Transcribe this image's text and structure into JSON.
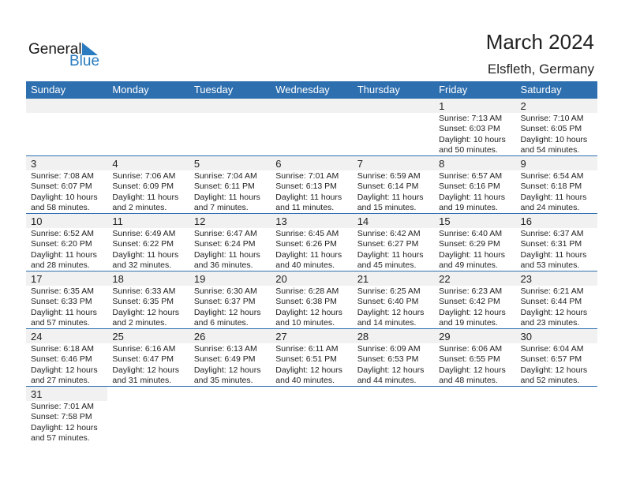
{
  "logo": {
    "word1": "General",
    "word2": "Blue",
    "color": "#2a7bc0"
  },
  "header": {
    "title": "March 2024",
    "location": "Elsfleth, Germany"
  },
  "colors": {
    "header_bg": "#2e6faf",
    "day_band": "#f1f1f1"
  },
  "weekdays": [
    "Sunday",
    "Monday",
    "Tuesday",
    "Wednesday",
    "Thursday",
    "Friday",
    "Saturday"
  ],
  "weeks": [
    [
      null,
      null,
      null,
      null,
      null,
      {
        "day": "1",
        "sunrise": "Sunrise: 7:13 AM",
        "sunset": "Sunset: 6:03 PM",
        "daylight1": "Daylight: 10 hours",
        "daylight2": "and 50 minutes."
      },
      {
        "day": "2",
        "sunrise": "Sunrise: 7:10 AM",
        "sunset": "Sunset: 6:05 PM",
        "daylight1": "Daylight: 10 hours",
        "daylight2": "and 54 minutes."
      }
    ],
    [
      {
        "day": "3",
        "sunrise": "Sunrise: 7:08 AM",
        "sunset": "Sunset: 6:07 PM",
        "daylight1": "Daylight: 10 hours",
        "daylight2": "and 58 minutes."
      },
      {
        "day": "4",
        "sunrise": "Sunrise: 7:06 AM",
        "sunset": "Sunset: 6:09 PM",
        "daylight1": "Daylight: 11 hours",
        "daylight2": "and 2 minutes."
      },
      {
        "day": "5",
        "sunrise": "Sunrise: 7:04 AM",
        "sunset": "Sunset: 6:11 PM",
        "daylight1": "Daylight: 11 hours",
        "daylight2": "and 7 minutes."
      },
      {
        "day": "6",
        "sunrise": "Sunrise: 7:01 AM",
        "sunset": "Sunset: 6:13 PM",
        "daylight1": "Daylight: 11 hours",
        "daylight2": "and 11 minutes."
      },
      {
        "day": "7",
        "sunrise": "Sunrise: 6:59 AM",
        "sunset": "Sunset: 6:14 PM",
        "daylight1": "Daylight: 11 hours",
        "daylight2": "and 15 minutes."
      },
      {
        "day": "8",
        "sunrise": "Sunrise: 6:57 AM",
        "sunset": "Sunset: 6:16 PM",
        "daylight1": "Daylight: 11 hours",
        "daylight2": "and 19 minutes."
      },
      {
        "day": "9",
        "sunrise": "Sunrise: 6:54 AM",
        "sunset": "Sunset: 6:18 PM",
        "daylight1": "Daylight: 11 hours",
        "daylight2": "and 24 minutes."
      }
    ],
    [
      {
        "day": "10",
        "sunrise": "Sunrise: 6:52 AM",
        "sunset": "Sunset: 6:20 PM",
        "daylight1": "Daylight: 11 hours",
        "daylight2": "and 28 minutes."
      },
      {
        "day": "11",
        "sunrise": "Sunrise: 6:49 AM",
        "sunset": "Sunset: 6:22 PM",
        "daylight1": "Daylight: 11 hours",
        "daylight2": "and 32 minutes."
      },
      {
        "day": "12",
        "sunrise": "Sunrise: 6:47 AM",
        "sunset": "Sunset: 6:24 PM",
        "daylight1": "Daylight: 11 hours",
        "daylight2": "and 36 minutes."
      },
      {
        "day": "13",
        "sunrise": "Sunrise: 6:45 AM",
        "sunset": "Sunset: 6:26 PM",
        "daylight1": "Daylight: 11 hours",
        "daylight2": "and 40 minutes."
      },
      {
        "day": "14",
        "sunrise": "Sunrise: 6:42 AM",
        "sunset": "Sunset: 6:27 PM",
        "daylight1": "Daylight: 11 hours",
        "daylight2": "and 45 minutes."
      },
      {
        "day": "15",
        "sunrise": "Sunrise: 6:40 AM",
        "sunset": "Sunset: 6:29 PM",
        "daylight1": "Daylight: 11 hours",
        "daylight2": "and 49 minutes."
      },
      {
        "day": "16",
        "sunrise": "Sunrise: 6:37 AM",
        "sunset": "Sunset: 6:31 PM",
        "daylight1": "Daylight: 11 hours",
        "daylight2": "and 53 minutes."
      }
    ],
    [
      {
        "day": "17",
        "sunrise": "Sunrise: 6:35 AM",
        "sunset": "Sunset: 6:33 PM",
        "daylight1": "Daylight: 11 hours",
        "daylight2": "and 57 minutes."
      },
      {
        "day": "18",
        "sunrise": "Sunrise: 6:33 AM",
        "sunset": "Sunset: 6:35 PM",
        "daylight1": "Daylight: 12 hours",
        "daylight2": "and 2 minutes."
      },
      {
        "day": "19",
        "sunrise": "Sunrise: 6:30 AM",
        "sunset": "Sunset: 6:37 PM",
        "daylight1": "Daylight: 12 hours",
        "daylight2": "and 6 minutes."
      },
      {
        "day": "20",
        "sunrise": "Sunrise: 6:28 AM",
        "sunset": "Sunset: 6:38 PM",
        "daylight1": "Daylight: 12 hours",
        "daylight2": "and 10 minutes."
      },
      {
        "day": "21",
        "sunrise": "Sunrise: 6:25 AM",
        "sunset": "Sunset: 6:40 PM",
        "daylight1": "Daylight: 12 hours",
        "daylight2": "and 14 minutes."
      },
      {
        "day": "22",
        "sunrise": "Sunrise: 6:23 AM",
        "sunset": "Sunset: 6:42 PM",
        "daylight1": "Daylight: 12 hours",
        "daylight2": "and 19 minutes."
      },
      {
        "day": "23",
        "sunrise": "Sunrise: 6:21 AM",
        "sunset": "Sunset: 6:44 PM",
        "daylight1": "Daylight: 12 hours",
        "daylight2": "and 23 minutes."
      }
    ],
    [
      {
        "day": "24",
        "sunrise": "Sunrise: 6:18 AM",
        "sunset": "Sunset: 6:46 PM",
        "daylight1": "Daylight: 12 hours",
        "daylight2": "and 27 minutes."
      },
      {
        "day": "25",
        "sunrise": "Sunrise: 6:16 AM",
        "sunset": "Sunset: 6:47 PM",
        "daylight1": "Daylight: 12 hours",
        "daylight2": "and 31 minutes."
      },
      {
        "day": "26",
        "sunrise": "Sunrise: 6:13 AM",
        "sunset": "Sunset: 6:49 PM",
        "daylight1": "Daylight: 12 hours",
        "daylight2": "and 35 minutes."
      },
      {
        "day": "27",
        "sunrise": "Sunrise: 6:11 AM",
        "sunset": "Sunset: 6:51 PM",
        "daylight1": "Daylight: 12 hours",
        "daylight2": "and 40 minutes."
      },
      {
        "day": "28",
        "sunrise": "Sunrise: 6:09 AM",
        "sunset": "Sunset: 6:53 PM",
        "daylight1": "Daylight: 12 hours",
        "daylight2": "and 44 minutes."
      },
      {
        "day": "29",
        "sunrise": "Sunrise: 6:06 AM",
        "sunset": "Sunset: 6:55 PM",
        "daylight1": "Daylight: 12 hours",
        "daylight2": "and 48 minutes."
      },
      {
        "day": "30",
        "sunrise": "Sunrise: 6:04 AM",
        "sunset": "Sunset: 6:57 PM",
        "daylight1": "Daylight: 12 hours",
        "daylight2": "and 52 minutes."
      }
    ],
    [
      {
        "day": "31",
        "sunrise": "Sunrise: 7:01 AM",
        "sunset": "Sunset: 7:58 PM",
        "daylight1": "Daylight: 12 hours",
        "daylight2": "and 57 minutes."
      },
      null,
      null,
      null,
      null,
      null,
      null
    ]
  ]
}
